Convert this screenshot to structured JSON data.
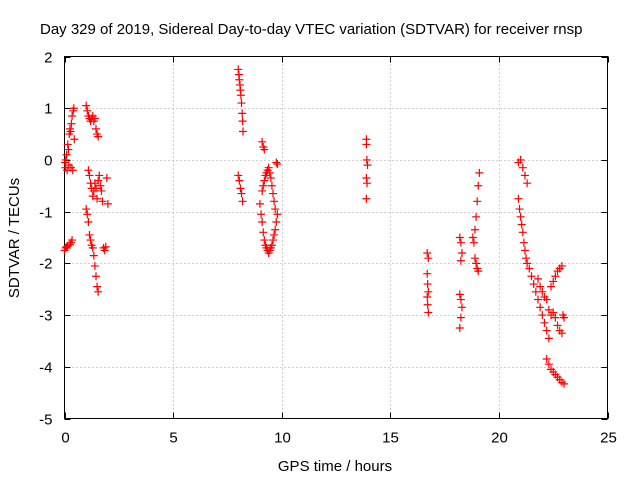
{
  "chart_data": {
    "type": "scatter",
    "title": "Day 329 of 2019, Sidereal Day-to-day VTEC variation (SDTVAR) for receiver rnsp",
    "xlabel": "GPS time / hours",
    "ylabel": "SDTVAR / TECUs",
    "xlim": [
      0,
      25
    ],
    "ylim": [
      -5,
      2
    ],
    "xticks": [
      0,
      5,
      10,
      15,
      20,
      25
    ],
    "yticks": [
      -5,
      -4,
      -3,
      -2,
      -1,
      0,
      1,
      2
    ],
    "xtick_labels": [
      "0",
      "5",
      "10",
      "15",
      "20",
      "25"
    ],
    "ytick_labels": [
      "-5",
      "-4",
      "-3",
      "-2",
      "-1",
      "0",
      "1",
      "2"
    ],
    "grid": true,
    "marker": "plus",
    "color": "#ff0000",
    "series": [
      {
        "name": "SDTVAR",
        "points": [
          [
            0.0,
            -1.75
          ],
          [
            0.05,
            -1.7
          ],
          [
            0.1,
            -1.68
          ],
          [
            0.15,
            -1.66
          ],
          [
            0.25,
            -1.64
          ],
          [
            0.3,
            -1.6
          ],
          [
            0.35,
            -1.55
          ],
          [
            0.02,
            -0.05
          ],
          [
            0.04,
            -0.15
          ],
          [
            0.06,
            0.0
          ],
          [
            0.1,
            0.1
          ],
          [
            0.12,
            -0.2
          ],
          [
            0.15,
            0.3
          ],
          [
            0.18,
            0.2
          ],
          [
            0.2,
            -0.1
          ],
          [
            0.22,
            0.5
          ],
          [
            0.25,
            0.6
          ],
          [
            0.28,
            0.55
          ],
          [
            0.3,
            -0.15
          ],
          [
            0.32,
            0.7
          ],
          [
            0.35,
            0.85
          ],
          [
            0.38,
            -0.2
          ],
          [
            0.4,
            0.95
          ],
          [
            0.43,
            1.0
          ],
          [
            0.45,
            0.4
          ],
          [
            1.0,
            1.05
          ],
          [
            1.05,
            0.95
          ],
          [
            1.1,
            0.85
          ],
          [
            1.15,
            0.8
          ],
          [
            1.2,
            0.75
          ],
          [
            1.25,
            0.8
          ],
          [
            1.3,
            0.85
          ],
          [
            1.35,
            0.75
          ],
          [
            1.4,
            0.8
          ],
          [
            1.45,
            0.6
          ],
          [
            1.5,
            0.5
          ],
          [
            1.55,
            0.45
          ],
          [
            1.0,
            -0.95
          ],
          [
            1.05,
            -1.05
          ],
          [
            1.1,
            -1.2
          ],
          [
            1.15,
            -1.45
          ],
          [
            1.2,
            -1.55
          ],
          [
            1.25,
            -1.65
          ],
          [
            1.3,
            -1.7
          ],
          [
            1.35,
            -1.85
          ],
          [
            1.4,
            -2.05
          ],
          [
            1.45,
            -2.25
          ],
          [
            1.5,
            -2.45
          ],
          [
            1.55,
            -2.55
          ],
          [
            1.1,
            -0.2
          ],
          [
            1.15,
            -0.3
          ],
          [
            1.2,
            -0.45
          ],
          [
            1.25,
            -0.55
          ],
          [
            1.3,
            -0.7
          ],
          [
            1.35,
            -0.6
          ],
          [
            1.4,
            -0.45
          ],
          [
            1.45,
            -0.55
          ],
          [
            1.5,
            -0.75
          ],
          [
            1.55,
            -0.4
          ],
          [
            1.6,
            -0.3
          ],
          [
            1.65,
            -0.5
          ],
          [
            1.7,
            -0.6
          ],
          [
            1.75,
            -0.8
          ],
          [
            1.8,
            -1.7
          ],
          [
            1.85,
            -1.75
          ],
          [
            1.9,
            -1.68
          ],
          [
            1.95,
            -0.35
          ],
          [
            2.0,
            -0.85
          ],
          [
            8.0,
            1.75
          ],
          [
            8.03,
            1.65
          ],
          [
            8.05,
            1.55
          ],
          [
            8.08,
            1.45
          ],
          [
            8.1,
            1.35
          ],
          [
            8.12,
            1.25
          ],
          [
            8.15,
            1.1
          ],
          [
            8.18,
            0.9
          ],
          [
            8.2,
            0.75
          ],
          [
            8.22,
            0.55
          ],
          [
            8.0,
            -0.3
          ],
          [
            8.05,
            -0.4
          ],
          [
            8.1,
            -0.55
          ],
          [
            8.15,
            -0.65
          ],
          [
            8.2,
            -0.8
          ],
          [
            9.1,
            0.35
          ],
          [
            9.15,
            0.25
          ],
          [
            9.2,
            0.2
          ],
          [
            9.0,
            -0.85
          ],
          [
            9.05,
            -1.05
          ],
          [
            9.1,
            -1.2
          ],
          [
            9.15,
            -1.4
          ],
          [
            9.2,
            -1.55
          ],
          [
            9.25,
            -1.65
          ],
          [
            9.3,
            -1.7
          ],
          [
            9.35,
            -1.75
          ],
          [
            9.4,
            -1.8
          ],
          [
            9.45,
            -1.75
          ],
          [
            9.5,
            -1.7
          ],
          [
            9.55,
            -1.65
          ],
          [
            9.6,
            -1.55
          ],
          [
            9.65,
            -1.45
          ],
          [
            9.7,
            -1.35
          ],
          [
            9.75,
            -1.2
          ],
          [
            9.8,
            -1.05
          ],
          [
            9.1,
            -0.6
          ],
          [
            9.15,
            -0.5
          ],
          [
            9.2,
            -0.4
          ],
          [
            9.25,
            -0.3
          ],
          [
            9.3,
            -0.25
          ],
          [
            9.35,
            -0.2
          ],
          [
            9.4,
            -0.15
          ],
          [
            9.45,
            -0.25
          ],
          [
            9.5,
            -0.35
          ],
          [
            9.55,
            -0.5
          ],
          [
            9.6,
            -0.65
          ],
          [
            9.65,
            -0.8
          ],
          [
            9.7,
            -0.95
          ],
          [
            9.75,
            -0.05
          ],
          [
            9.8,
            -0.08
          ],
          [
            13.9,
            0.4
          ],
          [
            13.9,
            0.3
          ],
          [
            13.92,
            0.0
          ],
          [
            13.95,
            -0.1
          ],
          [
            13.9,
            -0.35
          ],
          [
            13.93,
            -0.45
          ],
          [
            13.9,
            -0.75
          ],
          [
            16.7,
            -1.8
          ],
          [
            16.75,
            -1.9
          ],
          [
            16.7,
            -2.2
          ],
          [
            16.72,
            -2.4
          ],
          [
            16.75,
            -2.55
          ],
          [
            16.7,
            -2.65
          ],
          [
            16.72,
            -2.8
          ],
          [
            16.75,
            -2.95
          ],
          [
            18.2,
            -1.5
          ],
          [
            18.25,
            -1.6
          ],
          [
            18.3,
            -1.8
          ],
          [
            18.25,
            -1.95
          ],
          [
            18.2,
            -2.6
          ],
          [
            18.25,
            -2.7
          ],
          [
            18.3,
            -2.85
          ],
          [
            18.25,
            -3.05
          ],
          [
            18.2,
            -3.25
          ],
          [
            18.8,
            -1.5
          ],
          [
            18.85,
            -1.6
          ],
          [
            18.9,
            -1.35
          ],
          [
            18.95,
            -1.1
          ],
          [
            19.0,
            -0.8
          ],
          [
            19.05,
            -0.5
          ],
          [
            19.1,
            -0.25
          ],
          [
            18.9,
            -1.9
          ],
          [
            18.95,
            -2.0
          ],
          [
            19.0,
            -2.1
          ],
          [
            19.05,
            -2.15
          ],
          [
            20.9,
            -0.05
          ],
          [
            21.0,
            0.0
          ],
          [
            21.1,
            -0.15
          ],
          [
            21.2,
            -0.3
          ],
          [
            21.3,
            -0.45
          ],
          [
            20.9,
            -0.75
          ],
          [
            20.95,
            -0.95
          ],
          [
            21.0,
            -1.1
          ],
          [
            21.05,
            -1.25
          ],
          [
            21.1,
            -1.4
          ],
          [
            21.15,
            -1.6
          ],
          [
            21.2,
            -1.75
          ],
          [
            21.25,
            -1.9
          ],
          [
            21.3,
            -2.0
          ],
          [
            21.4,
            -2.1
          ],
          [
            21.5,
            -2.25
          ],
          [
            21.6,
            -2.4
          ],
          [
            21.7,
            -2.55
          ],
          [
            21.8,
            -2.7
          ],
          [
            21.9,
            -2.85
          ],
          [
            22.0,
            -3.0
          ],
          [
            22.1,
            -3.15
          ],
          [
            22.2,
            -3.3
          ],
          [
            22.3,
            -3.45
          ],
          [
            21.8,
            -2.3
          ],
          [
            21.9,
            -2.45
          ],
          [
            22.0,
            -2.55
          ],
          [
            22.1,
            -2.65
          ],
          [
            22.2,
            -2.7
          ],
          [
            22.3,
            -2.9
          ],
          [
            22.4,
            -3.0
          ],
          [
            22.5,
            -2.95
          ],
          [
            22.6,
            -3.05
          ],
          [
            22.7,
            -3.2
          ],
          [
            22.8,
            -3.3
          ],
          [
            22.9,
            -3.35
          ],
          [
            22.4,
            -2.45
          ],
          [
            22.5,
            -2.35
          ],
          [
            22.6,
            -2.25
          ],
          [
            22.7,
            -2.15
          ],
          [
            22.8,
            -2.1
          ],
          [
            22.9,
            -2.05
          ],
          [
            22.95,
            -3.0
          ],
          [
            23.0,
            -3.05
          ],
          [
            22.2,
            -3.85
          ],
          [
            22.3,
            -3.95
          ],
          [
            22.4,
            -4.05
          ],
          [
            22.5,
            -4.1
          ],
          [
            22.6,
            -4.15
          ],
          [
            22.7,
            -4.2
          ],
          [
            22.8,
            -4.25
          ],
          [
            22.9,
            -4.3
          ],
          [
            23.0,
            -4.33
          ]
        ]
      }
    ]
  }
}
